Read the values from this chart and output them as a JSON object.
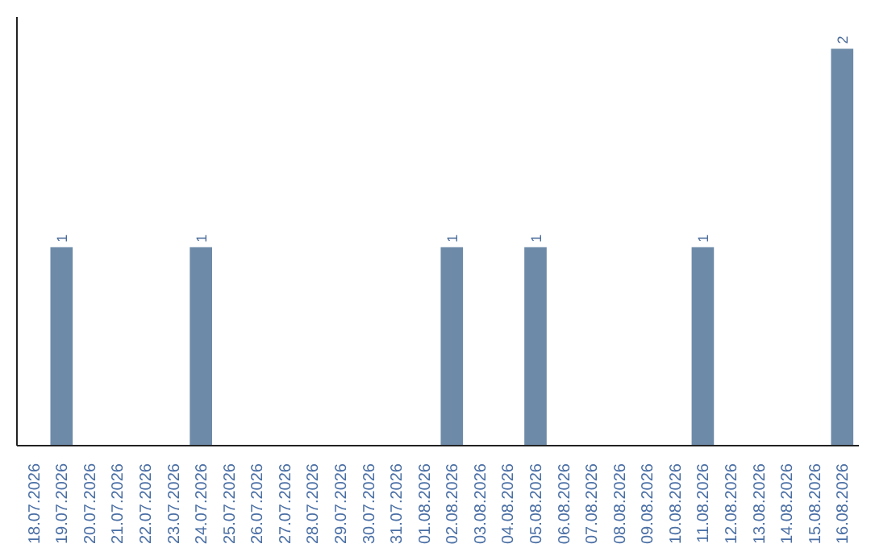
{
  "chart_data": {
    "type": "bar",
    "categories": [
      "18.07.2026",
      "19.07.2026",
      "20.07.2026",
      "21.07.2026",
      "22.07.2026",
      "23.07.2026",
      "24.07.2026",
      "25.07.2026",
      "26.07.2026",
      "27.07.2026",
      "28.07.2026",
      "29.07.2026",
      "30.07.2026",
      "31.07.2026",
      "01.08.2026",
      "02.08.2026",
      "03.08.2026",
      "04.08.2026",
      "05.08.2026",
      "06.08.2026",
      "07.08.2026",
      "08.08.2026",
      "09.08.2026",
      "10.08.2026",
      "11.08.2026",
      "12.08.2026",
      "13.08.2026",
      "14.08.2026",
      "15.08.2026",
      "16.08.2026"
    ],
    "values": [
      0,
      1,
      0,
      0,
      0,
      0,
      1,
      0,
      0,
      0,
      0,
      0,
      0,
      0,
      0,
      1,
      0,
      0,
      1,
      0,
      0,
      0,
      0,
      0,
      1,
      0,
      0,
      0,
      0,
      2
    ],
    "value_labels": [
      null,
      "1",
      null,
      null,
      null,
      null,
      "1",
      null,
      null,
      null,
      null,
      null,
      null,
      null,
      null,
      "1",
      null,
      null,
      "1",
      null,
      null,
      null,
      null,
      null,
      "1",
      null,
      null,
      null,
      null,
      "2"
    ],
    "color": "#6d8aa8",
    "tick_labels": "x",
    "grid": false
  }
}
